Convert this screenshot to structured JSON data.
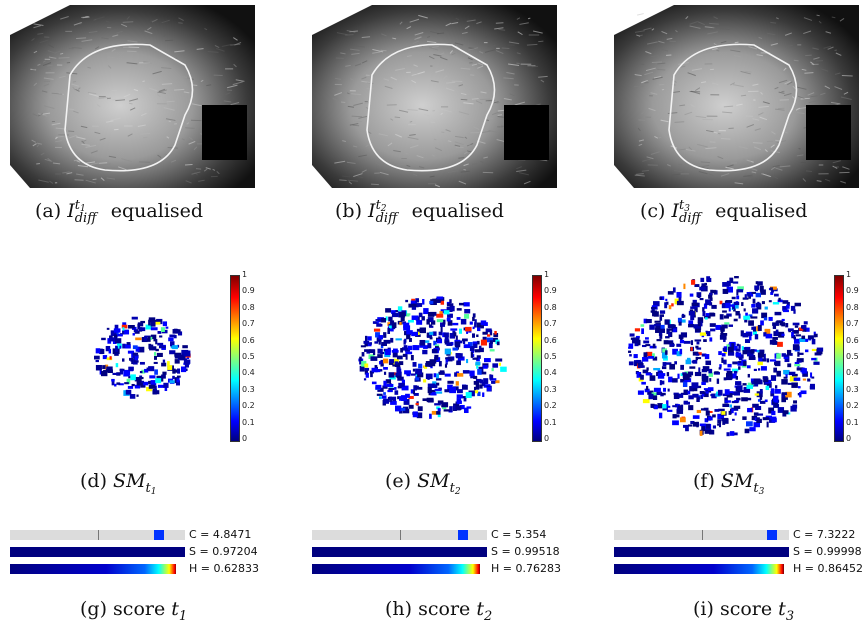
{
  "panels": [
    {
      "top_caption": {
        "label": "(a)",
        "var": "I",
        "sup": "t",
        "sup_sub": "1",
        "sub": "diff",
        "rest": "equalised"
      },
      "sm_caption": {
        "label": "(d)",
        "var": "SM",
        "sub": "t",
        "sub_sub": "1"
      },
      "score_caption": {
        "label": "(g)",
        "text": "score",
        "var": "t",
        "sub": "1"
      },
      "c_label": "C = 4.8471",
      "s_label": "S = 0.97204",
      "h_label": "H = 0.62833",
      "c_value": 0.85,
      "h_value": 0.95
    },
    {
      "top_caption": {
        "label": "(b)",
        "var": "I",
        "sup": "t",
        "sup_sub": "2",
        "sub": "diff",
        "rest": "equalised"
      },
      "sm_caption": {
        "label": "(e)",
        "var": "SM",
        "sub": "t",
        "sub_sub": "2"
      },
      "score_caption": {
        "label": "(h)",
        "text": "score",
        "var": "t",
        "sub": "2"
      },
      "c_label": "C = 5.354",
      "s_label": "S = 0.99518",
      "h_label": "H = 0.76283",
      "c_value": 0.86,
      "h_value": 0.96
    },
    {
      "top_caption": {
        "label": "(c)",
        "var": "I",
        "sup": "t",
        "sup_sub": "3",
        "sub": "diff",
        "rest": "equalised"
      },
      "sm_caption": {
        "label": "(f)",
        "var": "SM",
        "sub": "t",
        "sub_sub": "3"
      },
      "score_caption": {
        "label": "(i)",
        "text": "score",
        "var": "t",
        "sub": "3"
      },
      "c_label": "C = 7.3222",
      "s_label": "S = 0.99998",
      "h_label": "H = 0.86452",
      "c_value": 0.9,
      "h_value": 0.97
    }
  ],
  "colorbar_ticks": [
    "1",
    "0.9",
    "0.8",
    "0.7",
    "0.6",
    "0.5",
    "0.4",
    "0.3",
    "0.2",
    "0.1",
    "0"
  ],
  "colors": {
    "bar_bg": "#dcdcdc",
    "bar_navy": "#00007f",
    "c_marker": "#0033ff"
  }
}
